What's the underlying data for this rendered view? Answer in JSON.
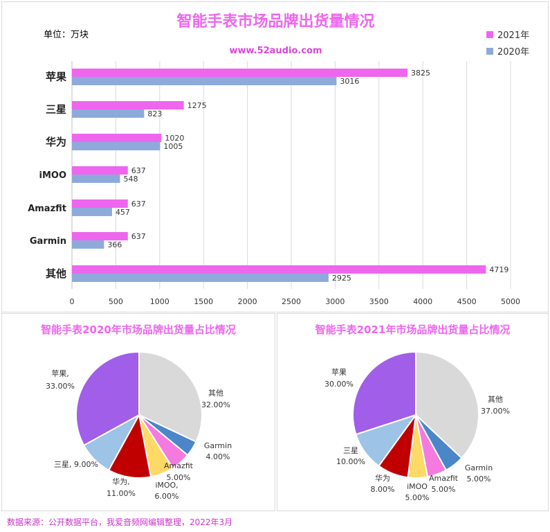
{
  "header": {
    "title": "智能手表市场品牌出货量情况",
    "unit": "单位：万块",
    "website": "www.52audio.com"
  },
  "colors": {
    "y2021": "#ee66ee",
    "y2020": "#8eaadb"
  },
  "chart_data": [
    {
      "type": "bar",
      "orientation": "horizontal",
      "title": "智能手表市场品牌出货量情况",
      "categories": [
        "苹果",
        "三星",
        "华为",
        "iMOO",
        "Amazfit",
        "Garmin",
        "其他"
      ],
      "series": [
        {
          "name": "2021年",
          "values": [
            3825,
            1275,
            1020,
            637,
            637,
            637,
            4719
          ]
        },
        {
          "name": "2020年",
          "values": [
            3016,
            823,
            1005,
            548,
            457,
            366,
            2925
          ]
        }
      ],
      "xlim": [
        0,
        5000
      ],
      "xticks": [
        0,
        500,
        1000,
        1500,
        2000,
        2500,
        3000,
        3500,
        4000,
        4500,
        5000
      ],
      "grid": true,
      "legend": "top-right"
    },
    {
      "type": "pie",
      "title": "智能手表2020年市场品牌出货量占比情况",
      "slices": [
        {
          "label": "其他",
          "value": 32.0,
          "text": "32.00%",
          "color": "#d9d9d9"
        },
        {
          "label": "Garmin",
          "value": 4.0,
          "text": "4.00%",
          "color": "#4a86c8"
        },
        {
          "label": "Amazfit",
          "value": 5.0,
          "text": "5.00%",
          "color": "#f47ae0"
        },
        {
          "label": "iMOO",
          "value": 6.0,
          "text": "6.00%",
          "color": "#ffd966"
        },
        {
          "label": "华为",
          "value": 11.0,
          "text": "11.00%",
          "color": "#c00000"
        },
        {
          "label": "三星",
          "value": 9.0,
          "text": "9.00%",
          "color": "#9dc3e6"
        },
        {
          "label": "苹果",
          "value": 33.0,
          "text": "33.00%",
          "color": "#a15ee8"
        }
      ]
    },
    {
      "type": "pie",
      "title": "智能手表2021年市场品牌出货量占比情况",
      "slices": [
        {
          "label": "其他",
          "value": 37.0,
          "text": "37.00%",
          "color": "#d9d9d9"
        },
        {
          "label": "Garmin",
          "value": 5.0,
          "text": "5.00%",
          "color": "#4a86c8"
        },
        {
          "label": "Amazfit",
          "value": 5.0,
          "text": "5.00%",
          "color": "#f47ae0"
        },
        {
          "label": "iMOO",
          "value": 5.0,
          "text": "5.00%",
          "color": "#ffd966"
        },
        {
          "label": "华为",
          "value": 8.0,
          "text": "8.00%",
          "color": "#c00000"
        },
        {
          "label": "三星",
          "value": 10.0,
          "text": "10.00%",
          "color": "#9dc3e6"
        },
        {
          "label": "苹果",
          "value": 30.0,
          "text": "30.00%",
          "color": "#a15ee8"
        }
      ]
    }
  ],
  "pie_label_texts": {
    "left": [
      "其他",
      "32.00%",
      "Garmin",
      "4.00%",
      "Amazfit",
      "5.00%",
      "iMOO,",
      "6.00%",
      "华为,",
      "11.00%",
      "三星, 9.00%",
      "苹果,",
      "33.00%"
    ],
    "right": [
      "其他",
      "37.00%",
      "Garmin",
      "5.00%",
      "Amazfit",
      "5.00%",
      "iMOO",
      "5.00%",
      "华为",
      "8.00%",
      "三星",
      "10.00%",
      "苹果",
      "30.00%"
    ]
  },
  "footer": {
    "source": "数据来源：公开数据平台，我爱音频网编辑整理，2022年3月"
  }
}
